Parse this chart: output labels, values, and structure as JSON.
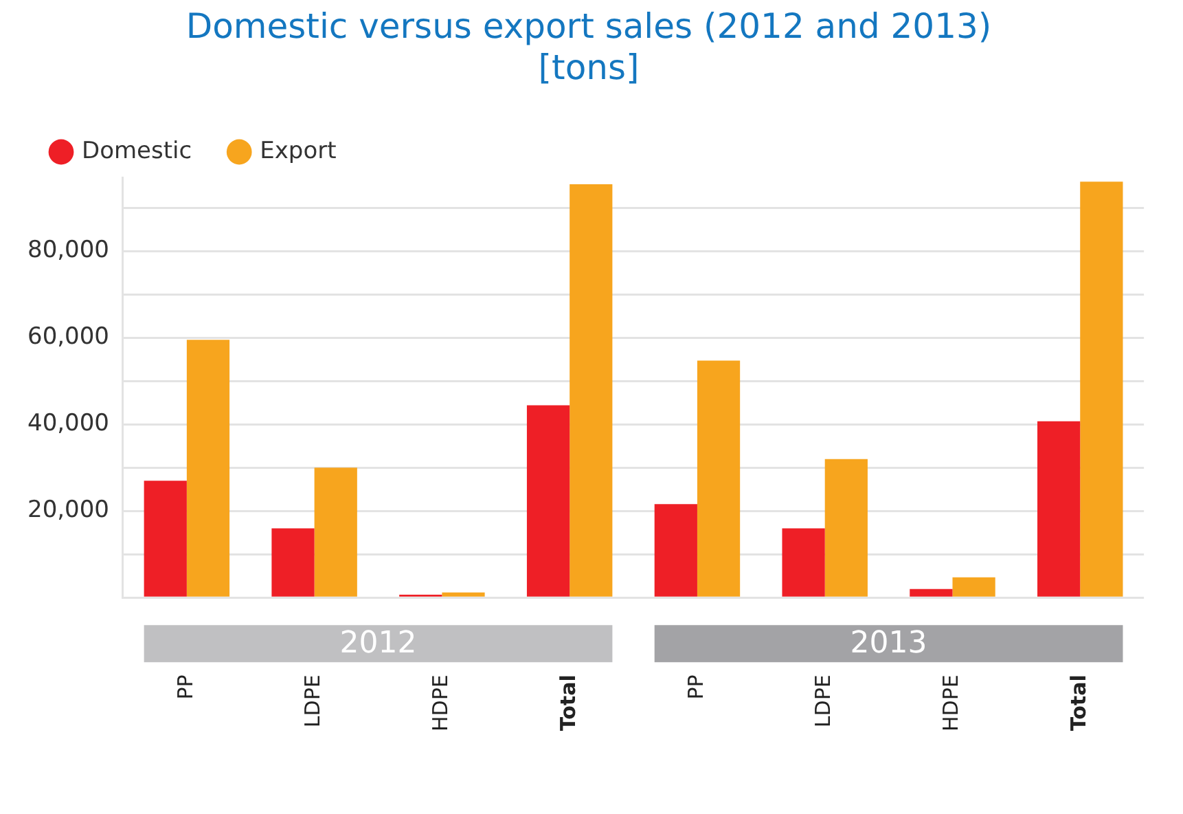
{
  "chart_data": {
    "type": "bar",
    "title": "Domestic versus export sales (2012 and 2013)",
    "subtitle": "[tons]",
    "categories": [
      "PP",
      "LDPE",
      "HDPE",
      "Total",
      "PP",
      "LDPE",
      "HDPE",
      "Total"
    ],
    "series": [
      {
        "name": "Domestic",
        "color": "#ee1f26",
        "values": [
          27000,
          16000,
          700,
          44400,
          21600,
          16000,
          2000,
          40700
        ]
      },
      {
        "name": "Export",
        "color": "#f7a51e",
        "values": [
          59500,
          30000,
          1200,
          95400,
          54700,
          32000,
          4700,
          96000
        ]
      }
    ],
    "ylim": [
      0,
      97000
    ],
    "yticks": [
      {
        "value": 0,
        "label": null
      },
      {
        "value": 10000,
        "label": null
      },
      {
        "value": 20000,
        "label": "20,000"
      },
      {
        "value": 30000,
        "label": null
      },
      {
        "value": 40000,
        "label": "40,000"
      },
      {
        "value": 50000,
        "label": null
      },
      {
        "value": 60000,
        "label": "60,000"
      },
      {
        "value": 70000,
        "label": null
      },
      {
        "value": 80000,
        "label": "80,000"
      },
      {
        "value": 90000,
        "label": null
      }
    ],
    "annotations": [
      "2012",
      "2013"
    ],
    "grid": "y",
    "legend": "top left"
  }
}
